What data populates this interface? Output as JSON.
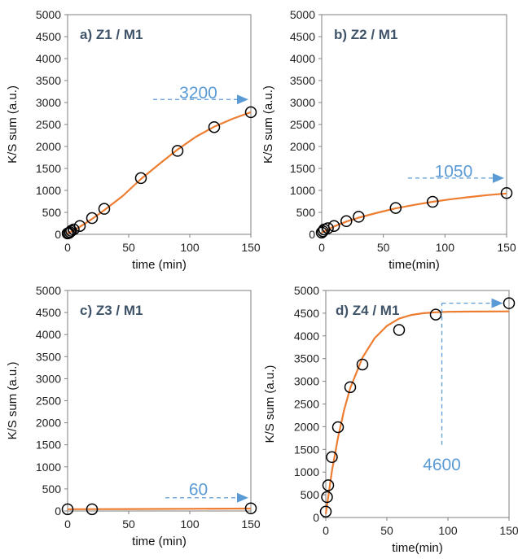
{
  "colors": {
    "fit_line": "#ed7d31",
    "marker": "#000000",
    "annotation": "#5b9bd5",
    "title": "#3f5369"
  },
  "chart_data": [
    {
      "type": "scatter",
      "title": "a) Z1 / M1",
      "xlabel": "time (min)",
      "ylabel": "K/S sum (a.u.)",
      "xlim": [
        0,
        150
      ],
      "ylim": [
        0,
        5000
      ],
      "xticks": [
        0,
        50,
        100,
        150
      ],
      "yticks": [
        0,
        500,
        1000,
        1500,
        2000,
        2500,
        3000,
        3500,
        4000,
        4500,
        5000
      ],
      "grid": false,
      "series": [
        {
          "x": [
            0,
            1,
            2,
            3,
            5,
            10,
            20,
            30,
            60,
            90,
            120,
            150
          ],
          "y": [
            20,
            30,
            50,
            80,
            110,
            190,
            370,
            580,
            1280,
            1900,
            2440,
            2780
          ]
        }
      ],
      "fit": {
        "x": [
          0,
          5,
          10,
          20,
          30,
          45,
          60,
          75,
          90,
          105,
          120,
          135,
          150
        ],
        "y": [
          20,
          90,
          170,
          350,
          550,
          870,
          1260,
          1600,
          1930,
          2220,
          2450,
          2630,
          2780
        ]
      },
      "annotation": {
        "text": "3200",
        "x_from": 70,
        "x_to": 148,
        "y": 3070,
        "label_y": 3200,
        "label_x": 107,
        "dir": "h"
      }
    },
    {
      "type": "scatter",
      "title": "b) Z2 / M1",
      "xlabel": "time(min)",
      "ylabel": "K/S sum (a.u.)",
      "xlim": [
        0,
        150
      ],
      "ylim": [
        0,
        5000
      ],
      "xticks": [
        0,
        50,
        100,
        150
      ],
      "yticks": [
        0,
        500,
        1000,
        1500,
        2000,
        2500,
        3000,
        3500,
        4000,
        4500,
        5000
      ],
      "grid": false,
      "series": [
        {
          "x": [
            0,
            1,
            2,
            5,
            10,
            20,
            30,
            60,
            90,
            150
          ],
          "y": [
            40,
            70,
            110,
            140,
            190,
            300,
            400,
            600,
            740,
            940
          ]
        }
      ],
      "fit": {
        "x": [
          0,
          5,
          10,
          20,
          30,
          45,
          60,
          75,
          90,
          105,
          120,
          135,
          150
        ],
        "y": [
          40,
          110,
          180,
          290,
          380,
          490,
          590,
          670,
          740,
          800,
          850,
          895,
          930
        ]
      },
      "annotation": {
        "text": "1050",
        "x_from": 70,
        "x_to": 148,
        "y": 1280,
        "label_y": 1420,
        "label_x": 107,
        "dir": "h"
      }
    },
    {
      "type": "scatter",
      "title": "c) Z3 / M1",
      "xlabel": "time (min)",
      "ylabel": "K/S sum (a.u.)",
      "xlim": [
        0,
        150
      ],
      "ylim": [
        0,
        5000
      ],
      "xticks": [
        0,
        50,
        100,
        150
      ],
      "yticks": [
        0,
        500,
        1000,
        1500,
        2000,
        2500,
        3000,
        3500,
        4000,
        4500,
        5000
      ],
      "grid": false,
      "series": [
        {
          "x": [
            0,
            20,
            150
          ],
          "y": [
            40,
            40,
            60
          ]
        }
      ],
      "fit": {
        "x": [
          0,
          50,
          100,
          150
        ],
        "y": [
          40,
          45,
          50,
          55
        ]
      },
      "annotation": {
        "text": "60",
        "x_from": 80,
        "x_to": 148,
        "y": 300,
        "label_y": 470,
        "label_x": 107,
        "dir": "h"
      }
    },
    {
      "type": "scatter",
      "title": "d) Z4 / M1",
      "xlabel": "time(min)",
      "ylabel": "K/S sum (a.u.)",
      "xlim": [
        0,
        150
      ],
      "ylim": [
        0,
        5000
      ],
      "xticks": [
        0,
        50,
        100,
        150
      ],
      "yticks": [
        0,
        500,
        1000,
        1500,
        2000,
        2500,
        3000,
        3500,
        4000,
        4500,
        5000
      ],
      "grid": false,
      "series": [
        {
          "x": [
            0,
            1,
            2,
            5,
            10,
            20,
            30,
            60,
            90,
            150
          ],
          "y": [
            130,
            450,
            710,
            1330,
            1990,
            2870,
            3370,
            4130,
            4470,
            4720
          ]
        }
      ],
      "fit": {
        "x": [
          0,
          2,
          5,
          10,
          15,
          20,
          30,
          40,
          50,
          60,
          70,
          80,
          90,
          100,
          120,
          150
        ],
        "y": [
          80,
          450,
          1020,
          1760,
          2370,
          2850,
          3520,
          3950,
          4220,
          4380,
          4460,
          4500,
          4520,
          4530,
          4535,
          4540
        ]
      },
      "annotation": {
        "text": "4600",
        "x_from": 95,
        "x_to": 145,
        "y": 4720,
        "label_y": 1150,
        "label_x": 95,
        "dir": "elbow",
        "y_bottom": 1600
      }
    }
  ]
}
